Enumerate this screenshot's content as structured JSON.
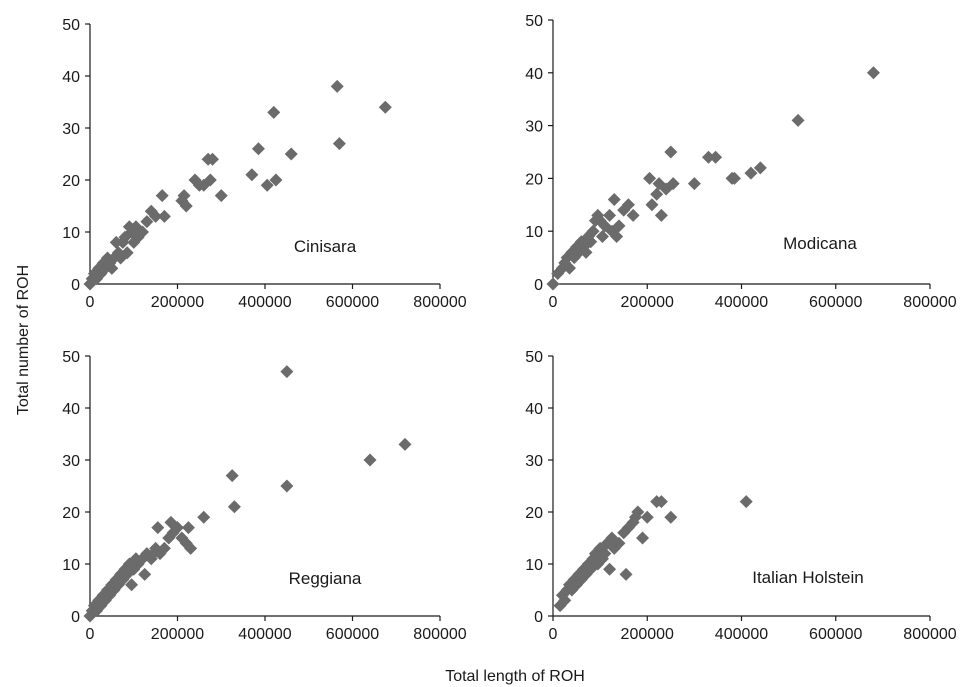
{
  "figure": {
    "shared_xlabel": "Total length of ROH",
    "shared_ylabel": "Total number of ROH"
  },
  "chart_data": [
    {
      "type": "scatter",
      "panel_label": "Cinisara",
      "xlim": [
        0,
        800000
      ],
      "ylim": [
        0,
        50
      ],
      "x_ticks": [
        "0",
        "200000",
        "400000",
        "600000",
        "800000"
      ],
      "y_ticks": [
        "0",
        "10",
        "20",
        "30",
        "40",
        "50"
      ],
      "marker": "diamond",
      "color": "#6b6b6b",
      "points": [
        [
          0,
          0
        ],
        [
          5000,
          1
        ],
        [
          10000,
          2
        ],
        [
          15000,
          1
        ],
        [
          20000,
          3
        ],
        [
          25000,
          2
        ],
        [
          30000,
          4
        ],
        [
          35000,
          3
        ],
        [
          40000,
          5
        ],
        [
          45000,
          4
        ],
        [
          50000,
          3
        ],
        [
          55000,
          5
        ],
        [
          60000,
          8
        ],
        [
          65000,
          6
        ],
        [
          70000,
          5
        ],
        [
          75000,
          8
        ],
        [
          80000,
          9
        ],
        [
          85000,
          6
        ],
        [
          90000,
          11
        ],
        [
          95000,
          10
        ],
        [
          100000,
          8
        ],
        [
          105000,
          11
        ],
        [
          110000,
          9
        ],
        [
          120000,
          10
        ],
        [
          130000,
          12
        ],
        [
          140000,
          14
        ],
        [
          150000,
          13
        ],
        [
          165000,
          17
        ],
        [
          170000,
          13
        ],
        [
          210000,
          16
        ],
        [
          215000,
          17
        ],
        [
          220000,
          15
        ],
        [
          240000,
          20
        ],
        [
          250000,
          19
        ],
        [
          260000,
          19
        ],
        [
          270000,
          24
        ],
        [
          275000,
          20
        ],
        [
          280000,
          24
        ],
        [
          300000,
          17
        ],
        [
          370000,
          21
        ],
        [
          385000,
          26
        ],
        [
          405000,
          19
        ],
        [
          420000,
          33
        ],
        [
          425000,
          20
        ],
        [
          460000,
          25
        ],
        [
          565000,
          38
        ],
        [
          570000,
          27
        ],
        [
          675000,
          34
        ]
      ]
    },
    {
      "type": "scatter",
      "panel_label": "Modicana",
      "xlim": [
        0,
        800000
      ],
      "ylim": [
        0,
        50
      ],
      "x_ticks": [
        "0",
        "200000",
        "400000",
        "600000",
        "800000"
      ],
      "y_ticks": [
        "0",
        "10",
        "20",
        "30",
        "40",
        "50"
      ],
      "marker": "diamond",
      "color": "#6b6b6b",
      "points": [
        [
          0,
          0
        ],
        [
          10000,
          2
        ],
        [
          20000,
          3
        ],
        [
          25000,
          4
        ],
        [
          30000,
          5
        ],
        [
          35000,
          3
        ],
        [
          40000,
          6
        ],
        [
          45000,
          5
        ],
        [
          50000,
          7
        ],
        [
          55000,
          6
        ],
        [
          60000,
          8
        ],
        [
          65000,
          7
        ],
        [
          70000,
          6
        ],
        [
          75000,
          9
        ],
        [
          80000,
          8
        ],
        [
          85000,
          10
        ],
        [
          90000,
          12
        ],
        [
          95000,
          13
        ],
        [
          100000,
          12
        ],
        [
          105000,
          9
        ],
        [
          110000,
          11
        ],
        [
          120000,
          13
        ],
        [
          125000,
          10
        ],
        [
          130000,
          16
        ],
        [
          135000,
          9
        ],
        [
          140000,
          11
        ],
        [
          150000,
          14
        ],
        [
          160000,
          15
        ],
        [
          170000,
          13
        ],
        [
          205000,
          20
        ],
        [
          210000,
          15
        ],
        [
          220000,
          17
        ],
        [
          225000,
          19
        ],
        [
          230000,
          13
        ],
        [
          240000,
          18
        ],
        [
          250000,
          25
        ],
        [
          255000,
          19
        ],
        [
          300000,
          19
        ],
        [
          330000,
          24
        ],
        [
          345000,
          24
        ],
        [
          380000,
          20
        ],
        [
          385000,
          20
        ],
        [
          420000,
          21
        ],
        [
          440000,
          22
        ],
        [
          520000,
          31
        ],
        [
          680000,
          40
        ]
      ]
    },
    {
      "type": "scatter",
      "panel_label": "Reggiana",
      "xlim": [
        0,
        800000
      ],
      "ylim": [
        0,
        50
      ],
      "x_ticks": [
        "0",
        "200000",
        "400000",
        "600000",
        "800000"
      ],
      "y_ticks": [
        "0",
        "10",
        "20",
        "30",
        "40",
        "50"
      ],
      "marker": "diamond",
      "color": "#6b6b6b",
      "points": [
        [
          0,
          0
        ],
        [
          5000,
          1
        ],
        [
          10000,
          2
        ],
        [
          15000,
          1
        ],
        [
          20000,
          3
        ],
        [
          25000,
          2
        ],
        [
          30000,
          4
        ],
        [
          35000,
          3
        ],
        [
          40000,
          5
        ],
        [
          45000,
          4
        ],
        [
          50000,
          6
        ],
        [
          55000,
          5
        ],
        [
          60000,
          7
        ],
        [
          65000,
          6
        ],
        [
          70000,
          8
        ],
        [
          75000,
          7
        ],
        [
          80000,
          9
        ],
        [
          85000,
          8
        ],
        [
          90000,
          10
        ],
        [
          95000,
          6
        ],
        [
          100000,
          9
        ],
        [
          105000,
          11
        ],
        [
          110000,
          10
        ],
        [
          120000,
          11
        ],
        [
          125000,
          8
        ],
        [
          130000,
          12
        ],
        [
          140000,
          11
        ],
        [
          145000,
          12
        ],
        [
          150000,
          13
        ],
        [
          155000,
          17
        ],
        [
          160000,
          12
        ],
        [
          170000,
          13
        ],
        [
          180000,
          15
        ],
        [
          185000,
          18
        ],
        [
          190000,
          16
        ],
        [
          200000,
          17
        ],
        [
          210000,
          15
        ],
        [
          220000,
          14
        ],
        [
          225000,
          17
        ],
        [
          230000,
          13
        ],
        [
          260000,
          19
        ],
        [
          325000,
          27
        ],
        [
          330000,
          21
        ],
        [
          450000,
          47
        ],
        [
          450000,
          25
        ],
        [
          640000,
          30
        ],
        [
          720000,
          33
        ]
      ]
    },
    {
      "type": "scatter",
      "panel_label": "Italian Holstein",
      "xlim": [
        0,
        800000
      ],
      "ylim": [
        0,
        50
      ],
      "x_ticks": [
        "0",
        "200000",
        "400000",
        "600000",
        "800000"
      ],
      "y_ticks": [
        "0",
        "10",
        "20",
        "30",
        "40",
        "50"
      ],
      "marker": "diamond",
      "color": "#6b6b6b",
      "points": [
        [
          15000,
          2
        ],
        [
          20000,
          4
        ],
        [
          25000,
          3
        ],
        [
          30000,
          5
        ],
        [
          35000,
          6
        ],
        [
          40000,
          5
        ],
        [
          45000,
          7
        ],
        [
          50000,
          6
        ],
        [
          55000,
          8
        ],
        [
          60000,
          7
        ],
        [
          65000,
          9
        ],
        [
          70000,
          8
        ],
        [
          75000,
          10
        ],
        [
          80000,
          9
        ],
        [
          85000,
          11
        ],
        [
          90000,
          12
        ],
        [
          95000,
          10
        ],
        [
          100000,
          13
        ],
        [
          105000,
          11
        ],
        [
          110000,
          12
        ],
        [
          115000,
          14
        ],
        [
          120000,
          9
        ],
        [
          125000,
          15
        ],
        [
          130000,
          13
        ],
        [
          140000,
          14
        ],
        [
          150000,
          16
        ],
        [
          155000,
          8
        ],
        [
          160000,
          17
        ],
        [
          170000,
          18
        ],
        [
          175000,
          19
        ],
        [
          180000,
          20
        ],
        [
          190000,
          15
        ],
        [
          200000,
          19
        ],
        [
          220000,
          22
        ],
        [
          230000,
          22
        ],
        [
          250000,
          19
        ],
        [
          410000,
          22
        ]
      ]
    }
  ]
}
